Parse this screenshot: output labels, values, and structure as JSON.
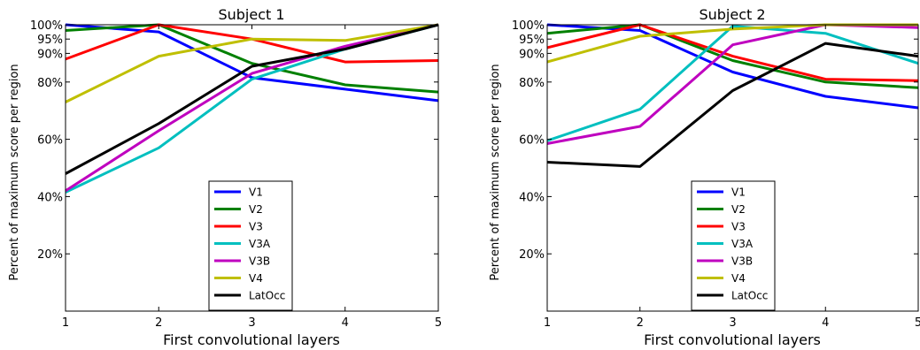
{
  "chart_data": [
    {
      "type": "line",
      "title": "Subject 1",
      "xlabel": "First convolutional layers",
      "ylabel": "Percent of maximum score per region",
      "x": [
        1,
        2,
        3,
        4,
        5
      ],
      "xlim": [
        1,
        5
      ],
      "ylim": [
        0,
        100
      ],
      "yticks": [
        20,
        40,
        60,
        80,
        90,
        95,
        100
      ],
      "ytick_labels": [
        "20%",
        "40%",
        "60%",
        "80%",
        "90%",
        "95%",
        "100%"
      ],
      "xticks": [
        1,
        2,
        3,
        4,
        5
      ],
      "xtick_labels": [
        "1",
        "2",
        "3",
        "4",
        "5"
      ],
      "grid": false,
      "legend_position": "lower center",
      "series": [
        {
          "name": "V1",
          "color": "#0000ff",
          "values": [
            100,
            97.5,
            81.5,
            77.5,
            73.5
          ]
        },
        {
          "name": "V2",
          "color": "#008000",
          "values": [
            98,
            100,
            86.5,
            79,
            76.5
          ]
        },
        {
          "name": "V3",
          "color": "#ff0000",
          "values": [
            88,
            100,
            95,
            87,
            87.5
          ]
        },
        {
          "name": "V3A",
          "color": "#00bfbf",
          "values": [
            41.5,
            57,
            81,
            91.5,
            100
          ]
        },
        {
          "name": "V3B",
          "color": "#bf00bf",
          "values": [
            42,
            63,
            83,
            92.5,
            100
          ]
        },
        {
          "name": "V4",
          "color": "#bfbf00",
          "values": [
            73,
            89,
            95,
            94.5,
            100
          ]
        },
        {
          "name": "LatOcc",
          "color": "#000000",
          "values": [
            48,
            65.5,
            85.5,
            91.5,
            100
          ]
        }
      ]
    },
    {
      "type": "line",
      "title": "Subject 2",
      "xlabel": "First convolutional layers",
      "ylabel": "Percent of maximum score per region",
      "x": [
        1,
        2,
        3,
        4,
        5
      ],
      "xlim": [
        1,
        5
      ],
      "ylim": [
        0,
        100
      ],
      "yticks": [
        20,
        40,
        60,
        80,
        90,
        95,
        100
      ],
      "ytick_labels": [
        "20%",
        "40%",
        "60%",
        "80%",
        "90%",
        "95%",
        "100%"
      ],
      "xticks": [
        1,
        2,
        3,
        4,
        5
      ],
      "xtick_labels": [
        "1",
        "2",
        "3",
        "4",
        "5"
      ],
      "grid": false,
      "legend_position": "lower center",
      "series": [
        {
          "name": "V1",
          "color": "#0000ff",
          "values": [
            100,
            98,
            83.5,
            75,
            71
          ]
        },
        {
          "name": "V2",
          "color": "#008000",
          "values": [
            97,
            100,
            87.5,
            80,
            78
          ]
        },
        {
          "name": "V3",
          "color": "#ff0000",
          "values": [
            92,
            100,
            89,
            81,
            80.5
          ]
        },
        {
          "name": "V3A",
          "color": "#00bfbf",
          "values": [
            59.5,
            70.5,
            99.5,
            97,
            86.5
          ]
        },
        {
          "name": "V3B",
          "color": "#bf00bf",
          "values": [
            58.5,
            64.5,
            93,
            100,
            99
          ]
        },
        {
          "name": "V4",
          "color": "#bfbf00",
          "values": [
            87,
            96,
            98.5,
            100,
            100
          ]
        },
        {
          "name": "LatOcc",
          "color": "#000000",
          "values": [
            52,
            50.5,
            77,
            93.5,
            89
          ]
        }
      ]
    }
  ]
}
